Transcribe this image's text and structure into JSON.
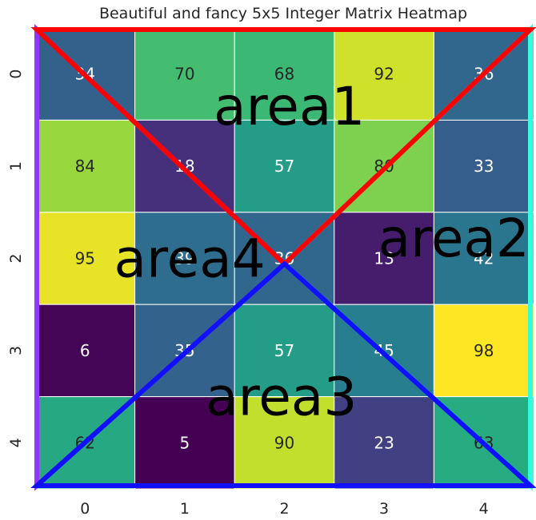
{
  "chart_data": {
    "type": "heatmap",
    "title": "Beautiful and fancy 5x5 Integer Matrix Heatmap",
    "xlabel": "",
    "ylabel": "",
    "x_ticks": [
      "0",
      "1",
      "2",
      "3",
      "4"
    ],
    "y_ticks": [
      "0",
      "1",
      "2",
      "3",
      "4"
    ],
    "values": [
      [
        34,
        70,
        68,
        92,
        36
      ],
      [
        84,
        18,
        57,
        80,
        33
      ],
      [
        95,
        39,
        36,
        13,
        42
      ],
      [
        6,
        35,
        57,
        45,
        98
      ],
      [
        62,
        5,
        90,
        23,
        63
      ]
    ],
    "value_range": [
      5,
      98
    ],
    "colormap": "viridis",
    "grid": false,
    "annotations": {
      "areas": [
        {
          "label": "area1",
          "color": "#ff0000"
        },
        {
          "label": "area2",
          "color": "#33ffdd"
        },
        {
          "label": "area3",
          "color": "#1010ff"
        },
        {
          "label": "area4",
          "color": "#9933ff"
        }
      ]
    }
  }
}
